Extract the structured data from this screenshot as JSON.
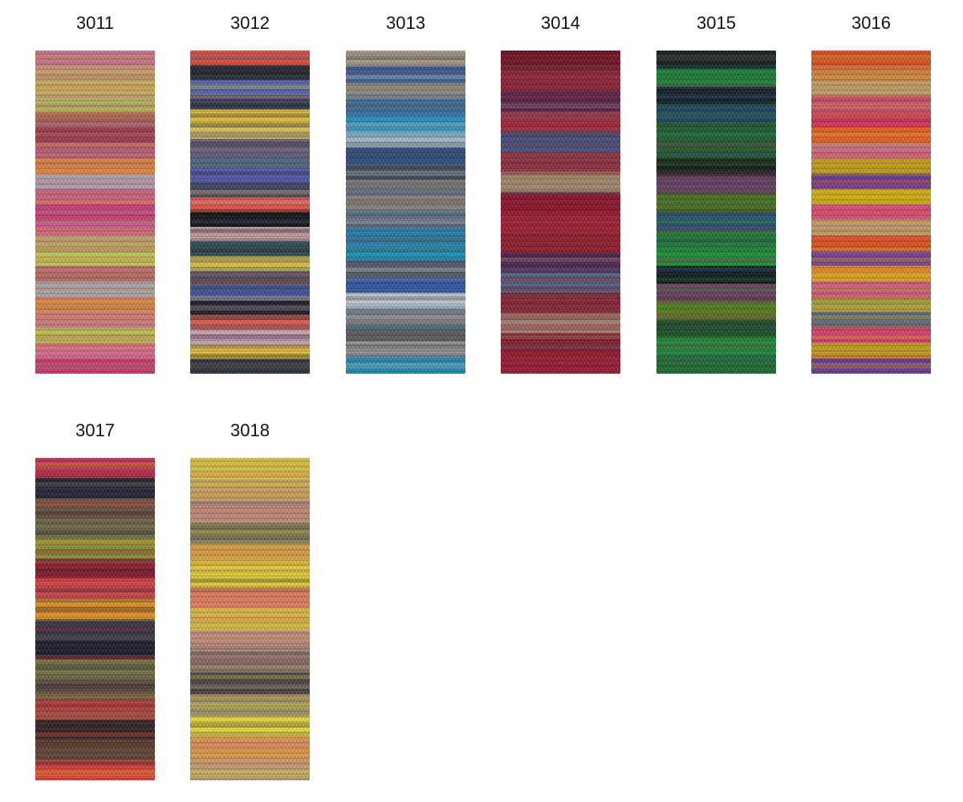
{
  "swatches": [
    {
      "code": "3011",
      "colors": [
        "#c8748a",
        "#c9a06a",
        "#c8b060",
        "#b8b858",
        "#a85a5a",
        "#9a3a4a",
        "#b85a70",
        "#e0843a",
        "#b0a0b0",
        "#d06080",
        "#c83a78",
        "#d05a8a",
        "#c0a860",
        "#c0c858",
        "#b86a60",
        "#a8a8b0",
        "#e08a40",
        "#d07a80",
        "#c0c050",
        "#d86a88",
        "#c83a70"
      ]
    },
    {
      "code": "3012",
      "colors": [
        "#e04a3a",
        "#202028",
        "#5060a8",
        "#3a3a58",
        "#e8c030",
        "#d8c058",
        "#686078",
        "#506080",
        "#5058b0",
        "#404060",
        "#e05040",
        "#101014",
        "#c8a0a0",
        "#2a4a50",
        "#d8c040",
        "#685060",
        "#4050a0",
        "#181c28",
        "#e05a50",
        "#c8a0b0",
        "#e8c038",
        "#283038"
      ]
    },
    {
      "code": "3013",
      "colors": [
        "#a89888",
        "#3a5a90",
        "#908878",
        "#3a6aa0",
        "#2890c0",
        "#a0b8c8",
        "#284a80",
        "#404858",
        "#707070",
        "#888078",
        "#5a6878",
        "#2878a8",
        "#1a90b8",
        "#505860",
        "#2a50a0",
        "#c0c8d0",
        "#7a7a7a",
        "#5a5a5a",
        "#909090",
        "#2088b0"
      ]
    },
    {
      "code": "3014",
      "colors": [
        "#6a1020",
        "#8a2030",
        "#502048",
        "#a02838",
        "#3a5080",
        "#8a3040",
        "#a08868",
        "#8a1028",
        "#a01830",
        "#901828",
        "#4a2050",
        "#506080",
        "#802030",
        "#a08070",
        "#8a1428",
        "#9a1830"
      ]
    },
    {
      "code": "3015",
      "colors": [
        "#102018",
        "#1a8030",
        "#0a1a20",
        "#1a4060",
        "#1a5a30",
        "#205a28",
        "#101810",
        "#6a3a5a",
        "#4a6a20",
        "#284a70",
        "#1a7a30",
        "#1a9030",
        "#0a1818",
        "#703a60",
        "#5a7a18",
        "#1a4a20",
        "#1a8a30",
        "#1a6a30"
      ]
    },
    {
      "code": "3016",
      "colors": [
        "#e04a20",
        "#d08040",
        "#c0a070",
        "#c84a70",
        "#d02a60",
        "#e85a20",
        "#d06a90",
        "#c09a18",
        "#6a3a90",
        "#d0b010",
        "#d84a80",
        "#c09a78",
        "#e05020",
        "#7a3a90",
        "#e0a020",
        "#d05a80",
        "#a0a040",
        "#5a6a80",
        "#d83a70",
        "#c0a020",
        "#6a3a90"
      ]
    },
    {
      "code": "3017",
      "colors": [
        "#c03050",
        "#202030",
        "#6a5040",
        "#706848",
        "#8a9030",
        "#901828",
        "#d04040",
        "#e09020",
        "#303040",
        "#181828",
        "#707040",
        "#5a4a40",
        "#b04038",
        "#302020",
        "#604030",
        "#e04038"
      ]
    },
    {
      "code": "3018",
      "colors": [
        "#d8c040",
        "#c8a060",
        "#c08878",
        "#707050",
        "#d8a040",
        "#e8d030",
        "#e87858",
        "#d8b840",
        "#c08880",
        "#806860",
        "#404040",
        "#a09060",
        "#e8d838",
        "#e09048",
        "#c0a070"
      ]
    }
  ]
}
